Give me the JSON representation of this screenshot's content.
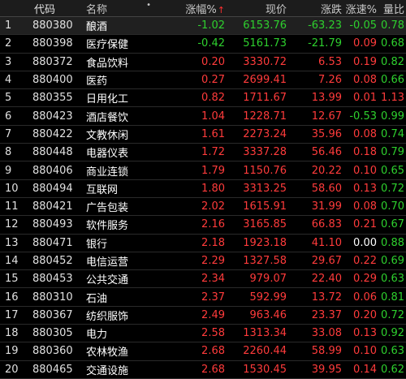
{
  "headers": {
    "idx": "",
    "code": "代码",
    "name": "名称",
    "name_dot": "•",
    "pct": "涨幅%",
    "pct_sort": "↑",
    "price": "现价",
    "chg": "涨跌",
    "spd": "涨速%",
    "vr": "量比"
  },
  "rows": [
    {
      "idx": "1",
      "code": "880380",
      "name": "酿酒",
      "pct": "-1.02",
      "price": "6153.76",
      "chg": "-63.23",
      "spd": "-0.05",
      "vr": "0.78",
      "dir": "down",
      "spd_dir": "down",
      "vr_dir": "down"
    },
    {
      "idx": "2",
      "code": "880398",
      "name": "医疗保健",
      "pct": "-0.42",
      "price": "5161.73",
      "chg": "-21.79",
      "spd": "0.09",
      "vr": "0.68",
      "dir": "down",
      "spd_dir": "up",
      "vr_dir": "down"
    },
    {
      "idx": "3",
      "code": "880372",
      "name": "食品饮料",
      "pct": "0.20",
      "price": "3330.72",
      "chg": "6.53",
      "spd": "0.19",
      "vr": "0.82",
      "dir": "up",
      "spd_dir": "up",
      "vr_dir": "down"
    },
    {
      "idx": "4",
      "code": "880400",
      "name": "医药",
      "pct": "0.27",
      "price": "2699.41",
      "chg": "7.26",
      "spd": "0.08",
      "vr": "0.66",
      "dir": "up",
      "spd_dir": "up",
      "vr_dir": "down"
    },
    {
      "idx": "5",
      "code": "880355",
      "name": "日用化工",
      "pct": "0.82",
      "price": "1711.67",
      "chg": "13.99",
      "spd": "0.01",
      "vr": "1.13",
      "dir": "up",
      "spd_dir": "up",
      "vr_dir": "up"
    },
    {
      "idx": "6",
      "code": "880423",
      "name": "酒店餐饮",
      "pct": "1.04",
      "price": "1228.71",
      "chg": "12.67",
      "spd": "-0.53",
      "vr": "0.99",
      "dir": "up",
      "spd_dir": "down",
      "vr_dir": "down"
    },
    {
      "idx": "7",
      "code": "880422",
      "name": "文教休闲",
      "pct": "1.61",
      "price": "2273.24",
      "chg": "35.96",
      "spd": "0.08",
      "vr": "0.74",
      "dir": "up",
      "spd_dir": "up",
      "vr_dir": "down"
    },
    {
      "idx": "8",
      "code": "880448",
      "name": "电器仪表",
      "pct": "1.72",
      "price": "3337.28",
      "chg": "56.46",
      "spd": "0.18",
      "vr": "0.79",
      "dir": "up",
      "spd_dir": "up",
      "vr_dir": "down"
    },
    {
      "idx": "9",
      "code": "880406",
      "name": "商业连锁",
      "pct": "1.79",
      "price": "1150.76",
      "chg": "20.22",
      "spd": "0.10",
      "vr": "0.65",
      "dir": "up",
      "spd_dir": "up",
      "vr_dir": "down"
    },
    {
      "idx": "10",
      "code": "880494",
      "name": "互联网",
      "pct": "1.80",
      "price": "3313.25",
      "chg": "58.60",
      "spd": "0.13",
      "vr": "0.72",
      "dir": "up",
      "spd_dir": "up",
      "vr_dir": "down"
    },
    {
      "idx": "11",
      "code": "880421",
      "name": "广告包装",
      "pct": "2.02",
      "price": "1615.91",
      "chg": "31.99",
      "spd": "0.08",
      "vr": "0.70",
      "dir": "up",
      "spd_dir": "up",
      "vr_dir": "down"
    },
    {
      "idx": "12",
      "code": "880493",
      "name": "软件服务",
      "pct": "2.16",
      "price": "3165.85",
      "chg": "66.83",
      "spd": "0.21",
      "vr": "0.67",
      "dir": "up",
      "spd_dir": "up",
      "vr_dir": "down"
    },
    {
      "idx": "13",
      "code": "880471",
      "name": "银行",
      "pct": "2.18",
      "price": "1923.18",
      "chg": "41.10",
      "spd": "0.00",
      "vr": "0.88",
      "dir": "up",
      "spd_dir": "flat",
      "vr_dir": "down"
    },
    {
      "idx": "14",
      "code": "880452",
      "name": "电信运营",
      "pct": "2.29",
      "price": "1327.58",
      "chg": "29.67",
      "spd": "0.22",
      "vr": "0.69",
      "dir": "up",
      "spd_dir": "up",
      "vr_dir": "down"
    },
    {
      "idx": "15",
      "code": "880453",
      "name": "公共交通",
      "pct": "2.34",
      "price": "979.07",
      "chg": "22.40",
      "spd": "0.29",
      "vr": "0.63",
      "dir": "up",
      "spd_dir": "up",
      "vr_dir": "down"
    },
    {
      "idx": "16",
      "code": "880310",
      "name": "石油",
      "pct": "2.37",
      "price": "592.99",
      "chg": "13.72",
      "spd": "0.06",
      "vr": "0.81",
      "dir": "up",
      "spd_dir": "up",
      "vr_dir": "down"
    },
    {
      "idx": "17",
      "code": "880367",
      "name": "纺织服饰",
      "pct": "2.49",
      "price": "963.46",
      "chg": "23.37",
      "spd": "0.20",
      "vr": "0.72",
      "dir": "up",
      "spd_dir": "up",
      "vr_dir": "down"
    },
    {
      "idx": "18",
      "code": "880305",
      "name": "电力",
      "pct": "2.58",
      "price": "1313.34",
      "chg": "33.08",
      "spd": "0.13",
      "vr": "0.92",
      "dir": "up",
      "spd_dir": "up",
      "vr_dir": "down"
    },
    {
      "idx": "19",
      "code": "880360",
      "name": "农林牧渔",
      "pct": "2.68",
      "price": "2260.44",
      "chg": "58.99",
      "spd": "0.10",
      "vr": "0.63",
      "dir": "up",
      "spd_dir": "up",
      "vr_dir": "down"
    },
    {
      "idx": "20",
      "code": "880465",
      "name": "交通设施",
      "pct": "2.68",
      "price": "1530.45",
      "chg": "39.95",
      "spd": "0.14",
      "vr": "0.62",
      "dir": "up",
      "spd_dir": "up",
      "vr_dir": "down"
    }
  ],
  "colors": {
    "up": "#ff3b3b",
    "down": "#2ed02e",
    "flat": "#ffffff",
    "background": "#000000",
    "header_bg": "#1c1c1c"
  }
}
